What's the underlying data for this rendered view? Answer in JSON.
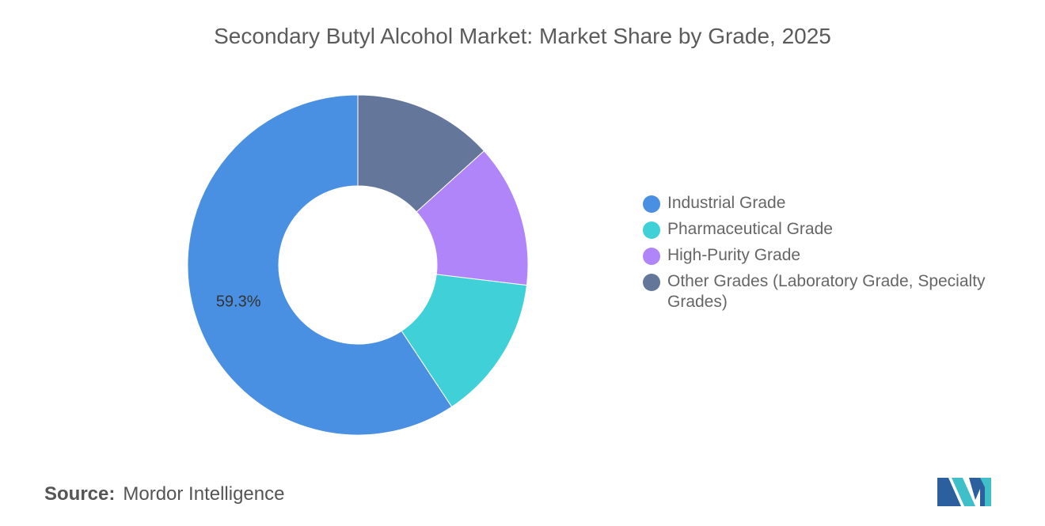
{
  "chart_data": {
    "type": "pie",
    "donut": true,
    "title": "Secondary Butyl Alcohol Market: Market Share by Grade, 2025",
    "categories": [
      "Industrial Grade",
      "Pharmaceutical Grade",
      "High-Purity Grade",
      "Other Grades (Laboratory Grade, Specialty Grades)"
    ],
    "values": [
      59.3,
      13.8,
      13.6,
      13.3
    ],
    "data_labels": [
      "59.3%",
      "",
      "",
      ""
    ],
    "colors": [
      "#4a90e2",
      "#40d0d8",
      "#b085fa",
      "#64779a"
    ],
    "legend_position": "right"
  },
  "source": {
    "label": "Source:",
    "value": "Mordor Intelligence"
  },
  "logo": {
    "name": "mordor-intelligence-logo",
    "colors": [
      "#2b5f9e",
      "#3fbfc7"
    ]
  }
}
